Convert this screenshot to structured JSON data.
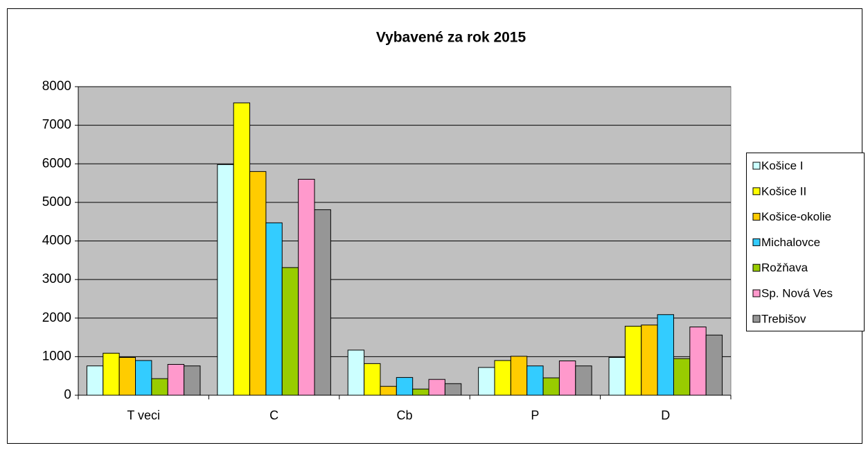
{
  "chart_data": {
    "type": "bar",
    "title": "Vybavené za rok 2015",
    "categories": [
      "T veci",
      "C",
      "Cb",
      "P",
      "D"
    ],
    "series": [
      {
        "name": "Košice I",
        "color": "#ccffff",
        "values": [
          760,
          5980,
          1170,
          720,
          980
        ]
      },
      {
        "name": "Košice II",
        "color": "#ffff00",
        "values": [
          1090,
          7580,
          820,
          900,
          1790
        ]
      },
      {
        "name": "Košice-okolie",
        "color": "#ffcc00",
        "values": [
          980,
          5800,
          230,
          1010,
          1820
        ]
      },
      {
        "name": "Michalovce",
        "color": "#33ccff",
        "values": [
          900,
          4470,
          460,
          760,
          2090
        ]
      },
      {
        "name": "Rožňava",
        "color": "#99cc00",
        "values": [
          430,
          3310,
          160,
          450,
          950
        ]
      },
      {
        "name": "Sp. Nová Ves",
        "color": "#ff99cc",
        "values": [
          800,
          5600,
          410,
          890,
          1770
        ]
      },
      {
        "name": "Trebišov",
        "color": "#969696",
        "values": [
          760,
          4810,
          300,
          760,
          1560
        ]
      }
    ],
    "ylim": [
      0,
      8000
    ],
    "yticks": [
      0,
      1000,
      2000,
      3000,
      4000,
      5000,
      6000,
      7000,
      8000
    ],
    "grid": true,
    "legend": "right"
  }
}
